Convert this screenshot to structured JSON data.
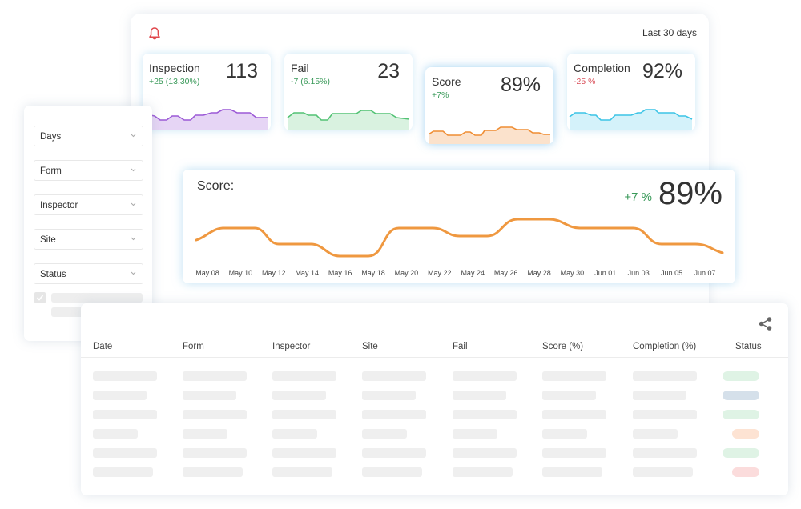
{
  "header": {
    "range_label": "Last 30 days",
    "bell_color": "#e0474c"
  },
  "kpis": [
    {
      "label": "Inspection",
      "value": "113",
      "delta": "+25 (13.30%)",
      "trend": "up",
      "color": "#9b59d6"
    },
    {
      "label": "Fail",
      "value": "23",
      "delta": "-7 (6.15%)",
      "trend": "up",
      "color": "#52c274"
    },
    {
      "label": "Score",
      "value": "89%",
      "delta": "+7%",
      "trend": "up",
      "color": "#ef8d33"
    },
    {
      "label": "Completion",
      "value": "92%",
      "delta": "-25 %",
      "trend": "down",
      "color": "#3cc4e6"
    }
  ],
  "score_chart": {
    "title": "Score:",
    "delta": "+7 %",
    "value": "89%",
    "color": "#ef9840"
  },
  "chart_data": {
    "type": "line",
    "categories": [
      "May 08",
      "May 10",
      "May 12",
      "May 14",
      "May 16",
      "May 18",
      "May 20",
      "May 22",
      "May 24",
      "May 26",
      "May 28",
      "May 30",
      "Jun 01",
      "Jun 03",
      "Jun 05",
      "Jun 07"
    ],
    "axis_labels": [
      "May 08",
      "May 10",
      "May 12",
      "May 14",
      "May 16",
      "May 18",
      "May 20",
      "May 22",
      "May 24",
      "May 26",
      "May 28",
      "May 30",
      "Jun 01",
      "Jun 03",
      "Jun 05",
      "Jun 07"
    ]
  },
  "filters": {
    "items": [
      {
        "label": "Days"
      },
      {
        "label": "Form"
      },
      {
        "label": "Inspector"
      },
      {
        "label": "Site"
      },
      {
        "label": "Status"
      }
    ]
  },
  "table": {
    "columns": [
      "Date",
      "Form",
      "Inspector",
      "Site",
      "Fail",
      "Score (%)",
      "Completion (%)",
      "Status"
    ],
    "status_colors": [
      "#dff3e5",
      "#d5e0ea",
      "#dff3e5",
      "#fde3d3",
      "#dff3e5",
      "#fbdcdc"
    ]
  }
}
